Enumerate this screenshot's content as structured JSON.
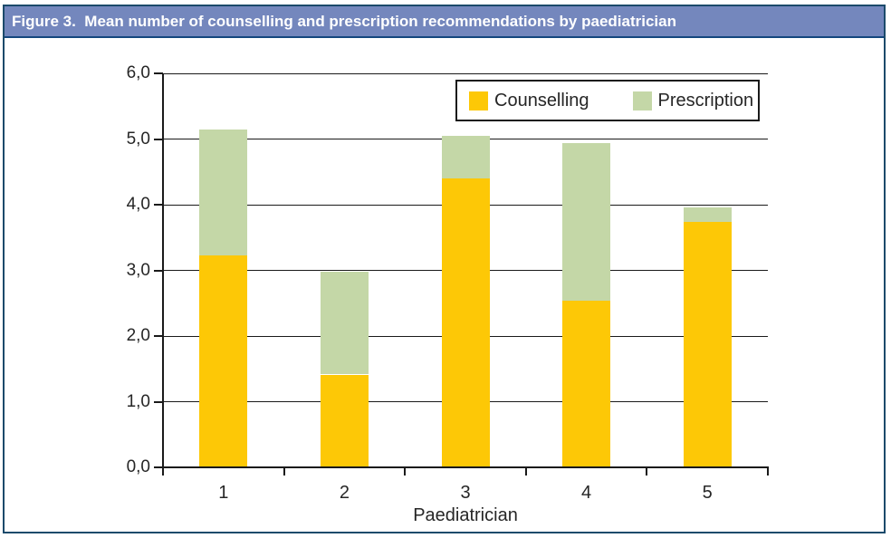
{
  "header": {
    "title": "Figure 3.  Mean number of counselling and prescription recommendations by paediatrician"
  },
  "chart_data": {
    "type": "bar",
    "stacked": true,
    "title": "Mean number of counselling and prescription recommendations by paediatrician",
    "categories": [
      "1",
      "2",
      "3",
      "4",
      "5"
    ],
    "series": [
      {
        "name": "Counselling",
        "color": "#FDC806",
        "values": [
          3.22,
          1.4,
          4.38,
          2.52,
          3.72
        ]
      },
      {
        "name": "Prescription",
        "color": "#C4D7A7",
        "values": [
          1.91,
          1.57,
          0.65,
          2.41,
          0.23
        ]
      }
    ],
    "stack_totals": [
      5.13,
      2.97,
      5.03,
      4.93,
      3.95
    ],
    "xlabel": "Paediatrician",
    "ylabel": "",
    "ylim": [
      0,
      6
    ],
    "ytick_step": 1.0,
    "ytick_labels": [
      "0,0",
      "1,0",
      "2,0",
      "3,0",
      "4,0",
      "5,0",
      "6,0"
    ],
    "decimal_separator": ",",
    "grid": "horizontal-major",
    "legend_position": "top-right-inside"
  },
  "colors": {
    "title_bar_bg": "#7487BD",
    "title_text": "#FFFFFF",
    "figure_border": "#1B4A6B",
    "title_underline": "#14477E",
    "counselling": "#FDC806",
    "prescription": "#C4D7A7",
    "axis_line": "#1A1A1A",
    "chart_text": "#262626"
  }
}
